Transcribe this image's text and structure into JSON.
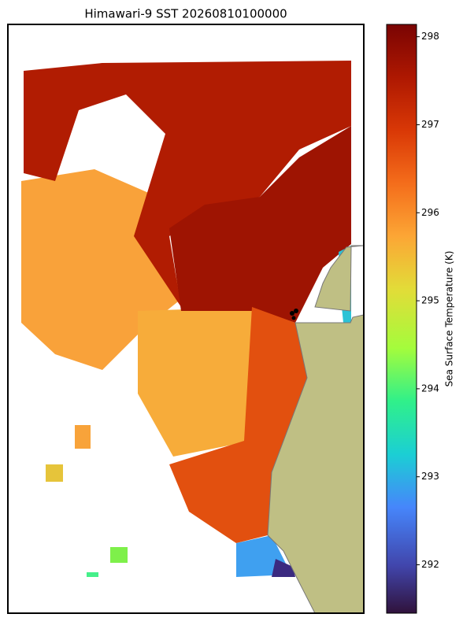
{
  "map": {
    "title": "Himawari-9 SST 20260810100000",
    "colorbar": {
      "label": "Sea Surface Temperature (K)",
      "lim": [
        291.45,
        298.14
      ],
      "ticks": [
        292,
        293,
        294,
        295,
        296,
        297,
        298
      ]
    }
  }
}
